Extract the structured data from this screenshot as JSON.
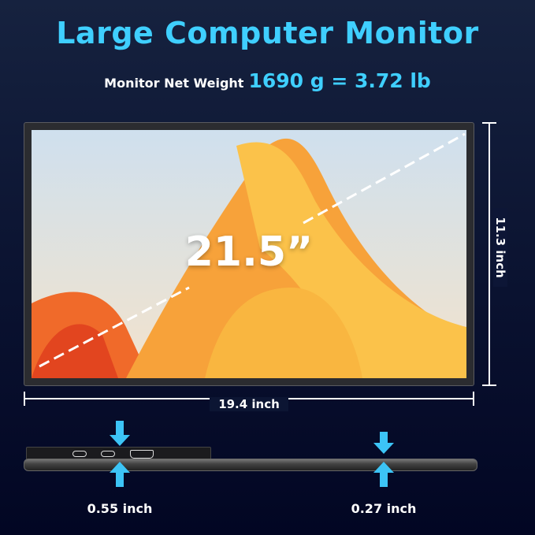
{
  "title": "Large Computer Monitor",
  "weight": {
    "label": "Monitor Net Weight",
    "value": "1690 g = 3.72 lb"
  },
  "screen_size": "21.5”",
  "dimensions": {
    "height": "11.3 inch",
    "width": "19.4 inch"
  },
  "thickness": {
    "thick_end": "0.55 inch",
    "thin_end": "0.27 inch"
  },
  "colors": {
    "accent": "#3fcfff",
    "background": "#0a1230"
  }
}
